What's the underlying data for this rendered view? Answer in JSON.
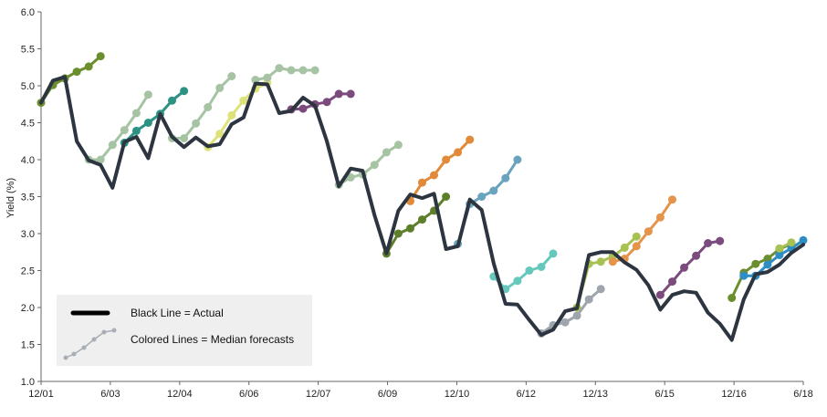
{
  "chart_data": {
    "type": "line",
    "title": "",
    "xlabel": "",
    "ylabel": "Yield (%)",
    "ylim": [
      1.0,
      6.0
    ],
    "yticks": [
      "1.0",
      "1.5",
      "2.0",
      "2.5",
      "3.0",
      "3.5",
      "4.0",
      "4.5",
      "5.0",
      "5.5",
      "6.0"
    ],
    "xticks": [
      "12/01",
      "6/03",
      "12/04",
      "6/06",
      "12/07",
      "6/09",
      "12/10",
      "6/12",
      "12/13",
      "6/15",
      "12/16",
      "6/18"
    ],
    "grid": false,
    "legend": {
      "placement": "bottom-left",
      "actual_label": "Black Line = Actual",
      "forecast_label": "Colored Lines = Median forecasts"
    },
    "colors": {
      "actual": "#2c3540",
      "legend_box": "#efefef",
      "axis": "#666666"
    },
    "actual": {
      "x": [
        0,
        1,
        2,
        3,
        4,
        5,
        6,
        7,
        8,
        9,
        10,
        11,
        12,
        13,
        14,
        15,
        16,
        17,
        18,
        19,
        20,
        21,
        22,
        23,
        24,
        25,
        26,
        27,
        28,
        29,
        30,
        31,
        32,
        33,
        34,
        35,
        36,
        37,
        38,
        39,
        40,
        41,
        42,
        43,
        44,
        45,
        46,
        47,
        48,
        49,
        50,
        51,
        52,
        53,
        54,
        55,
        56,
        57,
        58,
        59,
        60,
        61,
        62,
        63,
        64
      ],
      "values": [
        4.77,
        5.07,
        5.12,
        4.25,
        3.99,
        3.93,
        3.62,
        4.24,
        4.31,
        4.02,
        4.62,
        4.31,
        4.17,
        4.3,
        4.18,
        4.21,
        4.48,
        4.57,
        5.03,
        5.02,
        4.63,
        4.66,
        4.84,
        4.73,
        4.25,
        3.64,
        3.88,
        3.85,
        3.25,
        2.73,
        3.31,
        3.53,
        3.48,
        3.54,
        2.79,
        2.83,
        3.46,
        3.32,
        2.6,
        2.05,
        2.04,
        1.83,
        1.63,
        1.7,
        1.95,
        1.99,
        2.71,
        2.75,
        2.75,
        2.61,
        2.51,
        2.3,
        1.97,
        2.17,
        2.22,
        2.2,
        1.93,
        1.78,
        1.56,
        2.11,
        2.45,
        2.48,
        2.58,
        2.74,
        2.85
      ]
    },
    "series": [
      {
        "color": "#6b8e2f",
        "x": [
          0,
          1,
          2,
          3,
          4,
          5
        ],
        "values": [
          4.77,
          5.01,
          5.1,
          5.19,
          5.26,
          5.4
        ]
      },
      {
        "color": "#a6c4a3",
        "x": [
          4,
          5,
          6,
          7,
          8,
          9
        ],
        "values": [
          4.0,
          4.0,
          4.2,
          4.4,
          4.63,
          4.88
        ]
      },
      {
        "color": "#2c9384",
        "x": [
          7,
          8,
          9,
          10,
          11,
          12
        ],
        "values": [
          4.23,
          4.39,
          4.5,
          4.62,
          4.8,
          4.93
        ]
      },
      {
        "color": "#a6c4a3",
        "x": [
          11,
          12,
          13,
          14,
          15,
          16
        ],
        "values": [
          4.29,
          4.29,
          4.49,
          4.71,
          4.97,
          5.13
        ]
      },
      {
        "color": "#dde27a",
        "x": [
          14,
          15,
          16,
          17,
          18,
          19
        ],
        "values": [
          4.17,
          4.35,
          4.6,
          4.8,
          4.96,
          5.04
        ]
      },
      {
        "color": "#a6c4a3",
        "x": [
          18,
          19,
          20,
          21,
          22,
          23
        ],
        "values": [
          5.08,
          5.11,
          5.24,
          5.21,
          5.21,
          5.21
        ]
      },
      {
        "color": "#7b4b7d",
        "x": [
          21,
          22,
          23,
          24,
          25,
          26
        ],
        "values": [
          4.68,
          4.69,
          4.75,
          4.78,
          4.89,
          4.89
        ]
      },
      {
        "color": "#a6c4a3",
        "x": [
          25,
          26,
          27,
          28,
          29,
          30
        ],
        "values": [
          3.66,
          3.76,
          3.8,
          3.93,
          4.1,
          4.2
        ]
      },
      {
        "color": "#5e7f2a",
        "x": [
          29,
          30,
          31,
          32,
          33,
          34
        ],
        "values": [
          2.73,
          3.0,
          3.07,
          3.19,
          3.31,
          3.5
        ]
      },
      {
        "color": "#e08a3a",
        "x": [
          31,
          32,
          33,
          34,
          35,
          36
        ],
        "values": [
          3.44,
          3.69,
          3.79,
          4.0,
          4.1,
          4.27
        ]
      },
      {
        "color": "#6aa3bd",
        "x": [
          35,
          36,
          37,
          38,
          39,
          40
        ],
        "values": [
          2.86,
          3.4,
          3.5,
          3.58,
          3.75,
          4.0
        ]
      },
      {
        "color": "#66c8bd",
        "x": [
          38,
          39,
          40,
          41,
          42,
          43
        ],
        "values": [
          2.42,
          2.25,
          2.36,
          2.5,
          2.55,
          2.73
        ]
      },
      {
        "color": "#9ea5ad",
        "x": [
          42,
          43,
          44,
          45,
          46,
          47
        ],
        "values": [
          1.65,
          1.76,
          1.8,
          1.89,
          2.11,
          2.25
        ]
      },
      {
        "color": "#a7c153",
        "x": [
          45,
          46,
          47,
          48,
          49,
          50
        ],
        "values": [
          2.0,
          2.59,
          2.62,
          2.69,
          2.81,
          2.96
        ]
      },
      {
        "color": "#e5944a",
        "x": [
          48,
          49,
          50,
          51,
          52,
          53
        ],
        "values": [
          2.62,
          2.66,
          2.83,
          3.03,
          3.22,
          3.46
        ]
      },
      {
        "color": "#7b4b7d",
        "x": [
          52,
          53,
          54,
          55,
          56,
          57
        ],
        "values": [
          2.17,
          2.35,
          2.54,
          2.7,
          2.87,
          2.9
        ]
      },
      {
        "color": "#6b8e2f",
        "x": [
          58,
          59,
          60,
          61,
          62,
          63
        ],
        "values": [
          2.13,
          2.47,
          2.59,
          2.66,
          2.79,
          2.86
        ]
      },
      {
        "color": "#2e8ec4",
        "x": [
          59,
          60,
          61,
          62,
          63,
          64
        ],
        "values": [
          2.43,
          2.43,
          2.58,
          2.71,
          2.8,
          2.91
        ]
      },
      {
        "color": "#a7c153",
        "x": [
          62,
          63
        ],
        "values": [
          2.8,
          2.88
        ]
      }
    ]
  }
}
